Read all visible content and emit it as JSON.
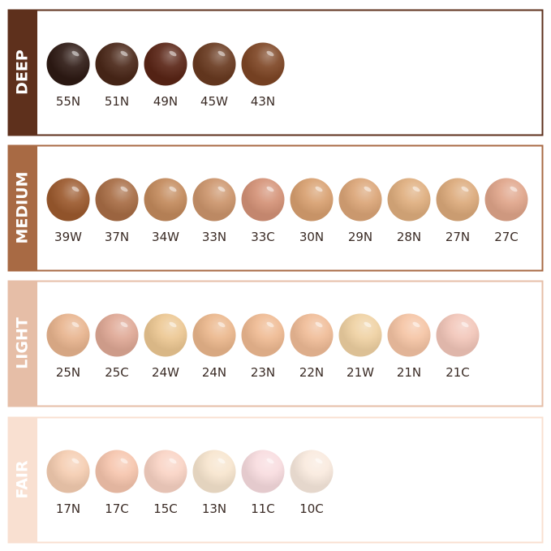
{
  "groups": [
    {
      "label": "DEEP",
      "bar_color": "#5e301c",
      "shades": [
        {
          "name": "55N",
          "color": "#2e1a14"
        },
        {
          "name": "51N",
          "color": "#4a2718"
        },
        {
          "name": "49N",
          "color": "#5a2516"
        },
        {
          "name": "45W",
          "color": "#693a20"
        },
        {
          "name": "43N",
          "color": "#7e4625"
        }
      ]
    },
    {
      "label": "MEDIUM",
      "bar_color": "#a86a44",
      "shades": [
        {
          "name": "39W",
          "color": "#9c5a2e"
        },
        {
          "name": "37N",
          "color": "#a86d45"
        },
        {
          "name": "34W",
          "color": "#c38a5c"
        },
        {
          "name": "33N",
          "color": "#cc956c"
        },
        {
          "name": "33C",
          "color": "#d49277"
        },
        {
          "name": "30N",
          "color": "#d8a070"
        },
        {
          "name": "29N",
          "color": "#dba577"
        },
        {
          "name": "28N",
          "color": "#dfae7e"
        },
        {
          "name": "27N",
          "color": "#dcaa7b"
        },
        {
          "name": "27C",
          "color": "#e0a58a"
        }
      ]
    },
    {
      "label": "LIGHT",
      "bar_color": "#e6bea7",
      "shades": [
        {
          "name": "25N",
          "color": "#e8b48e"
        },
        {
          "name": "25C",
          "color": "#dfa895"
        },
        {
          "name": "24W",
          "color": "#ecc792"
        },
        {
          "name": "24N",
          "color": "#ebb78c"
        },
        {
          "name": "23N",
          "color": "#efba92"
        },
        {
          "name": "22N",
          "color": "#f0bc97"
        },
        {
          "name": "21W",
          "color": "#efd1a2"
        },
        {
          "name": "21N",
          "color": "#f5c4a4"
        },
        {
          "name": "21C",
          "color": "#f2c6b9"
        }
      ]
    },
    {
      "label": "FAIR",
      "bar_color": "#f9e0d1",
      "shades": [
        {
          "name": "17N",
          "color": "#f5cdb1"
        },
        {
          "name": "17C",
          "color": "#f6c5ad"
        },
        {
          "name": "15C",
          "color": "#f9d3c4"
        },
        {
          "name": "13N",
          "color": "#f7e5ce"
        },
        {
          "name": "11C",
          "color": "#f8dcdf"
        },
        {
          "name": "10C",
          "color": "#f9eade"
        }
      ]
    }
  ]
}
